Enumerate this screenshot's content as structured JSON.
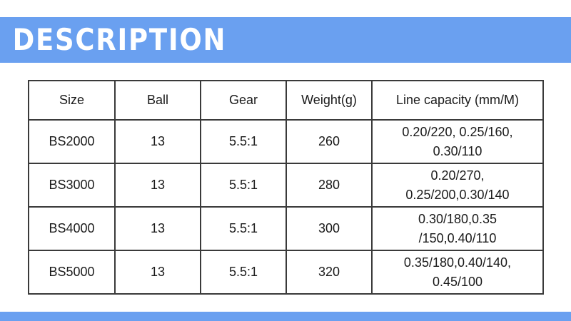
{
  "banner": {
    "title": "DESCRIPTION"
  },
  "colors": {
    "banner_blue": "#6aa0f0",
    "table_border": "#3a3a3a",
    "text": "#1a1a1a",
    "background": "#ffffff",
    "banner_text": "#ffffff"
  },
  "table": {
    "columns": [
      "Size",
      "Ball",
      "Gear",
      "Weight(g)",
      "Line capacity (mm/M)"
    ],
    "rows": [
      [
        "BS2000",
        "13",
        "5.5:1",
        "260",
        "0.20/220, 0.25/160,\n0.30/110"
      ],
      [
        "BS3000",
        "13",
        "5.5:1",
        "280",
        "0.20/270,\n0.25/200,0.30/140"
      ],
      [
        "BS4000",
        "13",
        "5.5:1",
        "300",
        "0.30/180,0.35\n/150,0.40/110"
      ],
      [
        "BS5000",
        "13",
        "5.5:1",
        "320",
        "0.35/180,0.40/140,\n0.45/100"
      ]
    ]
  }
}
